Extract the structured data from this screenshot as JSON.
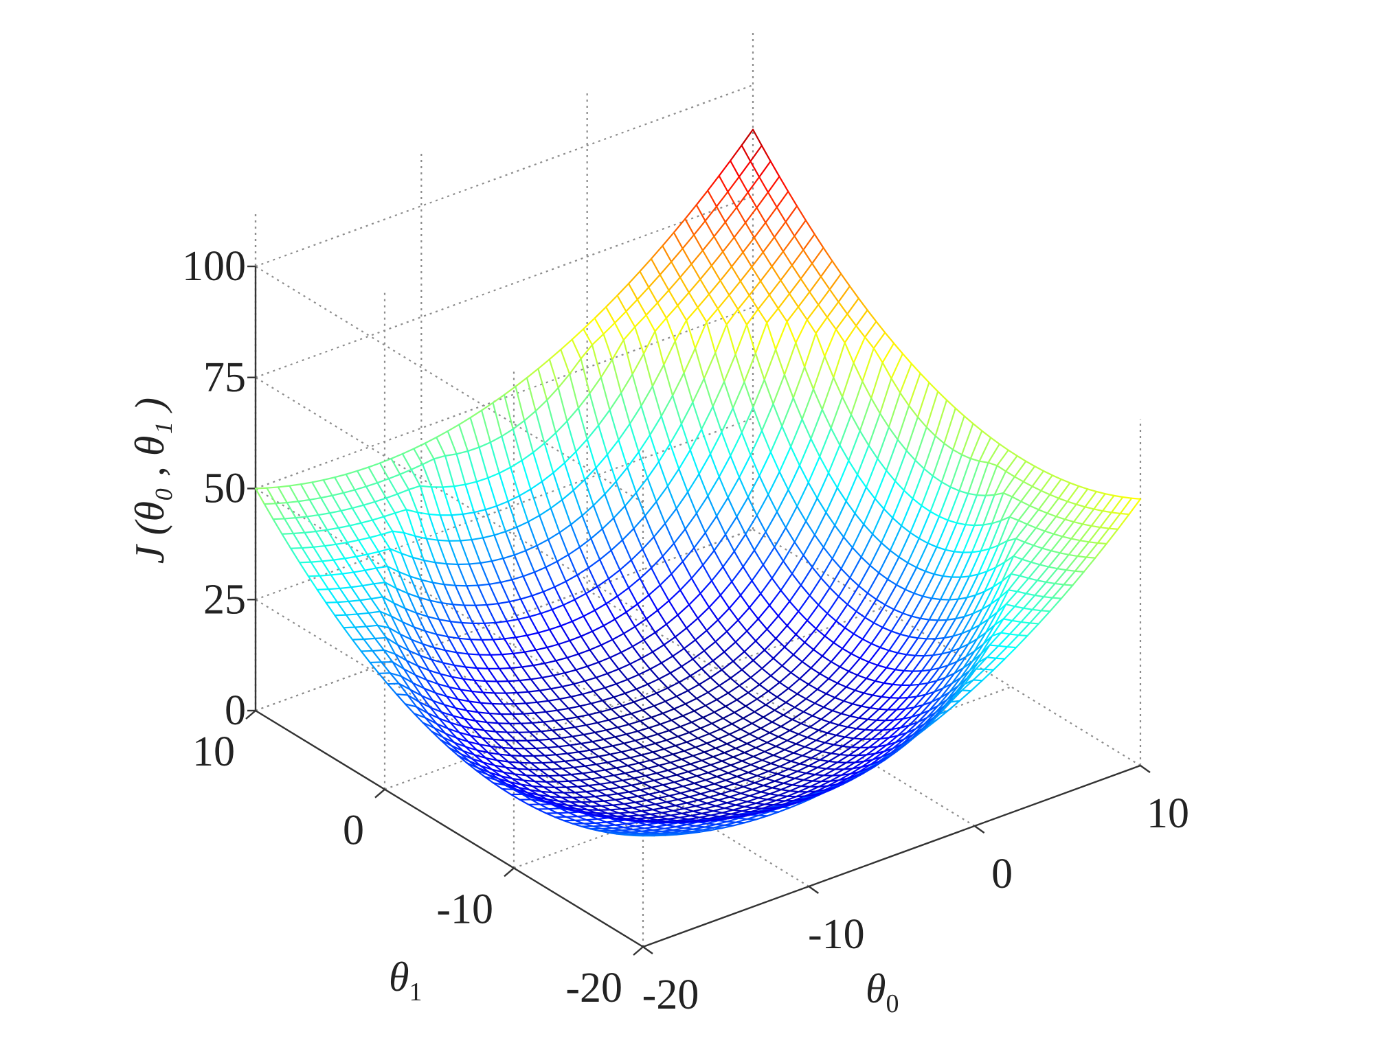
{
  "chart_data": {
    "type": "surface",
    "x_axis": {
      "label": "θ",
      "label_sub": "0",
      "range": [
        -20,
        10
      ],
      "ticks": [
        -20,
        -10,
        0,
        10
      ]
    },
    "y_axis": {
      "label": "θ",
      "label_sub": "1",
      "range": [
        -20,
        10
      ],
      "ticks": [
        -20,
        -10,
        0,
        10
      ]
    },
    "z_axis": {
      "label": "J (θ₀ , θ₁ )",
      "range": [
        0,
        100
      ],
      "ticks": [
        0,
        25,
        50,
        75,
        100
      ]
    },
    "surface": {
      "shape": "convex bowl (quadratic cost function)",
      "minimum": {
        "x": -5,
        "y": -5,
        "z": 0
      },
      "corner_values": [
        {
          "x": -20,
          "y": 10,
          "z": 50
        },
        {
          "x": 10,
          "y": 10,
          "z": 90
        },
        {
          "x": 10,
          "y": -20,
          "z": 60
        },
        {
          "x": -20,
          "y": -20,
          "z": 25
        }
      ],
      "render": "colored mesh (wireframe)",
      "colormap": "jet"
    },
    "grid": true,
    "box": "open back panels with dotted grid"
  }
}
